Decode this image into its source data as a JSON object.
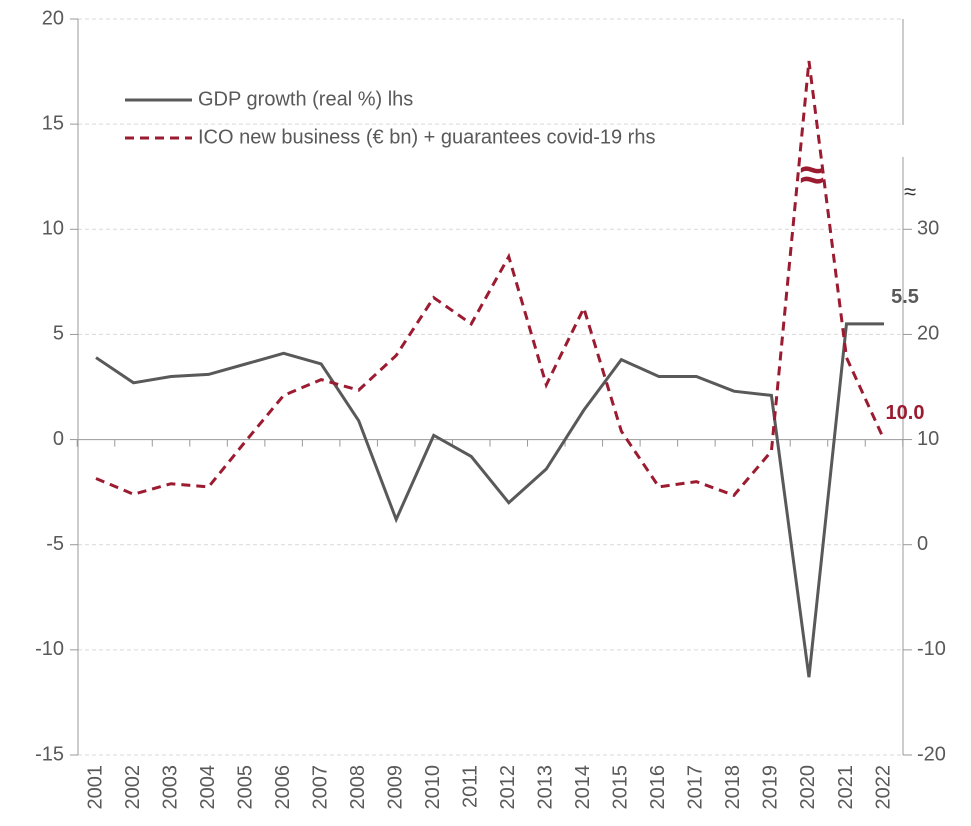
{
  "chart_data": {
    "type": "line",
    "categories": [
      "2001",
      "2002",
      "2003",
      "2004",
      "2005",
      "2006",
      "2007",
      "2008",
      "2009",
      "2010",
      "2011",
      "2012",
      "2013",
      "2014",
      "2015",
      "2016",
      "2017",
      "2018",
      "2019",
      "2020",
      "2021",
      "2022"
    ],
    "series": [
      {
        "name": "GDP growth (real %) lhs",
        "color": "#595959",
        "dash": false,
        "axis": "y",
        "values": [
          3.9,
          2.7,
          3.0,
          3.1,
          3.6,
          4.1,
          3.6,
          0.9,
          -3.8,
          0.2,
          -0.8,
          -3.0,
          -1.4,
          1.4,
          3.8,
          3.0,
          3.0,
          2.3,
          2.1,
          -11.3,
          5.5,
          5.5
        ],
        "value_labels": [
          null,
          null,
          null,
          null,
          null,
          null,
          null,
          null,
          null,
          null,
          null,
          null,
          null,
          null,
          null,
          null,
          null,
          null,
          null,
          null,
          null,
          "5.5"
        ]
      },
      {
        "name": "ICO new business (€ bn) + guarantees covid-19 rhs",
        "color": "#9b1b30",
        "dash": true,
        "axis": "y2",
        "values": [
          6.3,
          4.8,
          5.8,
          5.5,
          9.9,
          14.2,
          15.7,
          14.7,
          18.0,
          23.5,
          21.0,
          27.4,
          15.2,
          22.5,
          10.8,
          5.5,
          6.0,
          4.7,
          8.9,
          46.0,
          17.8,
          10.0
        ],
        "value_labels": [
          null,
          null,
          null,
          null,
          null,
          null,
          null,
          null,
          null,
          null,
          null,
          null,
          null,
          null,
          null,
          null,
          null,
          null,
          null,
          null,
          null,
          "10.0"
        ]
      }
    ],
    "ylim": [
      -15,
      20
    ],
    "yticks": [
      -15,
      -10,
      -5,
      0,
      5,
      10,
      15,
      20
    ],
    "y2lim": [
      -20,
      50
    ],
    "y2ticks": [
      -20,
      -10,
      0,
      10,
      20,
      30
    ],
    "axis_break_symbol": "≈",
    "grid": true
  }
}
